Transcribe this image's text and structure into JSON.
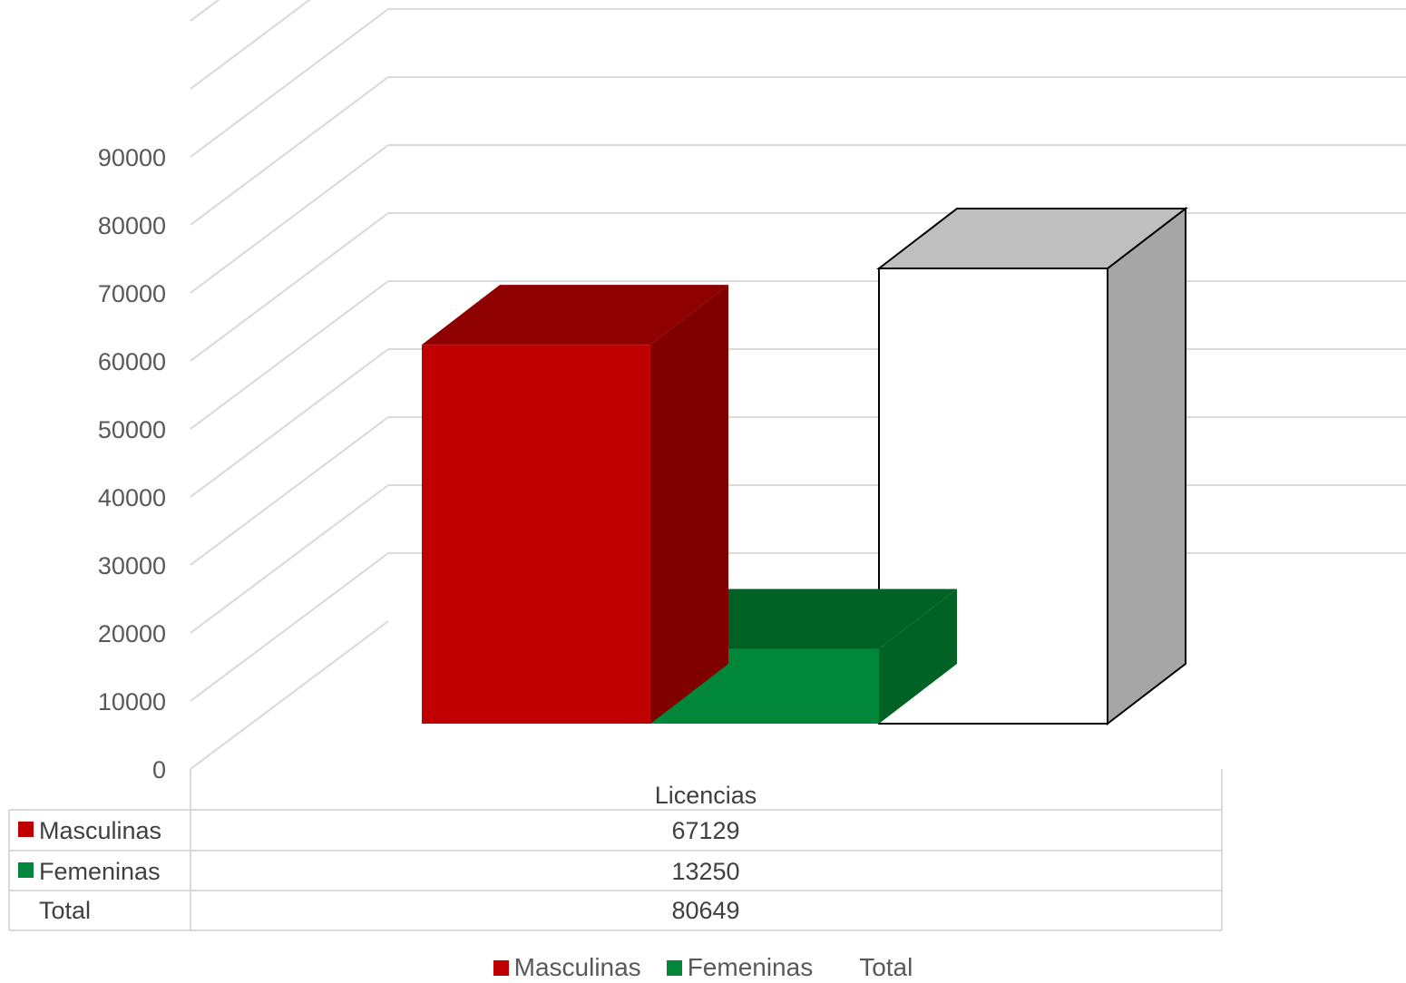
{
  "chart_data": {
    "type": "bar",
    "categories": [
      "Licencias"
    ],
    "series": [
      {
        "name": "Masculinas",
        "values": [
          67129
        ],
        "color": "#C00000"
      },
      {
        "name": "Femeninas",
        "values": [
          13250
        ],
        "color": "#00873A"
      },
      {
        "name": "Total",
        "values": [
          80649
        ],
        "color": "#FFFFFF"
      }
    ],
    "yticks": [
      "0",
      "10000",
      "20000",
      "30000",
      "40000",
      "50000",
      "60000",
      "70000",
      "80000",
      "90000"
    ],
    "ylim": [
      0,
      110000
    ],
    "grid": true,
    "three_d": true,
    "legend_position": "bottom",
    "data_table": true,
    "data_table_header": "Licencias",
    "data_table_values": [
      "67129",
      "13250",
      "80649"
    ]
  }
}
